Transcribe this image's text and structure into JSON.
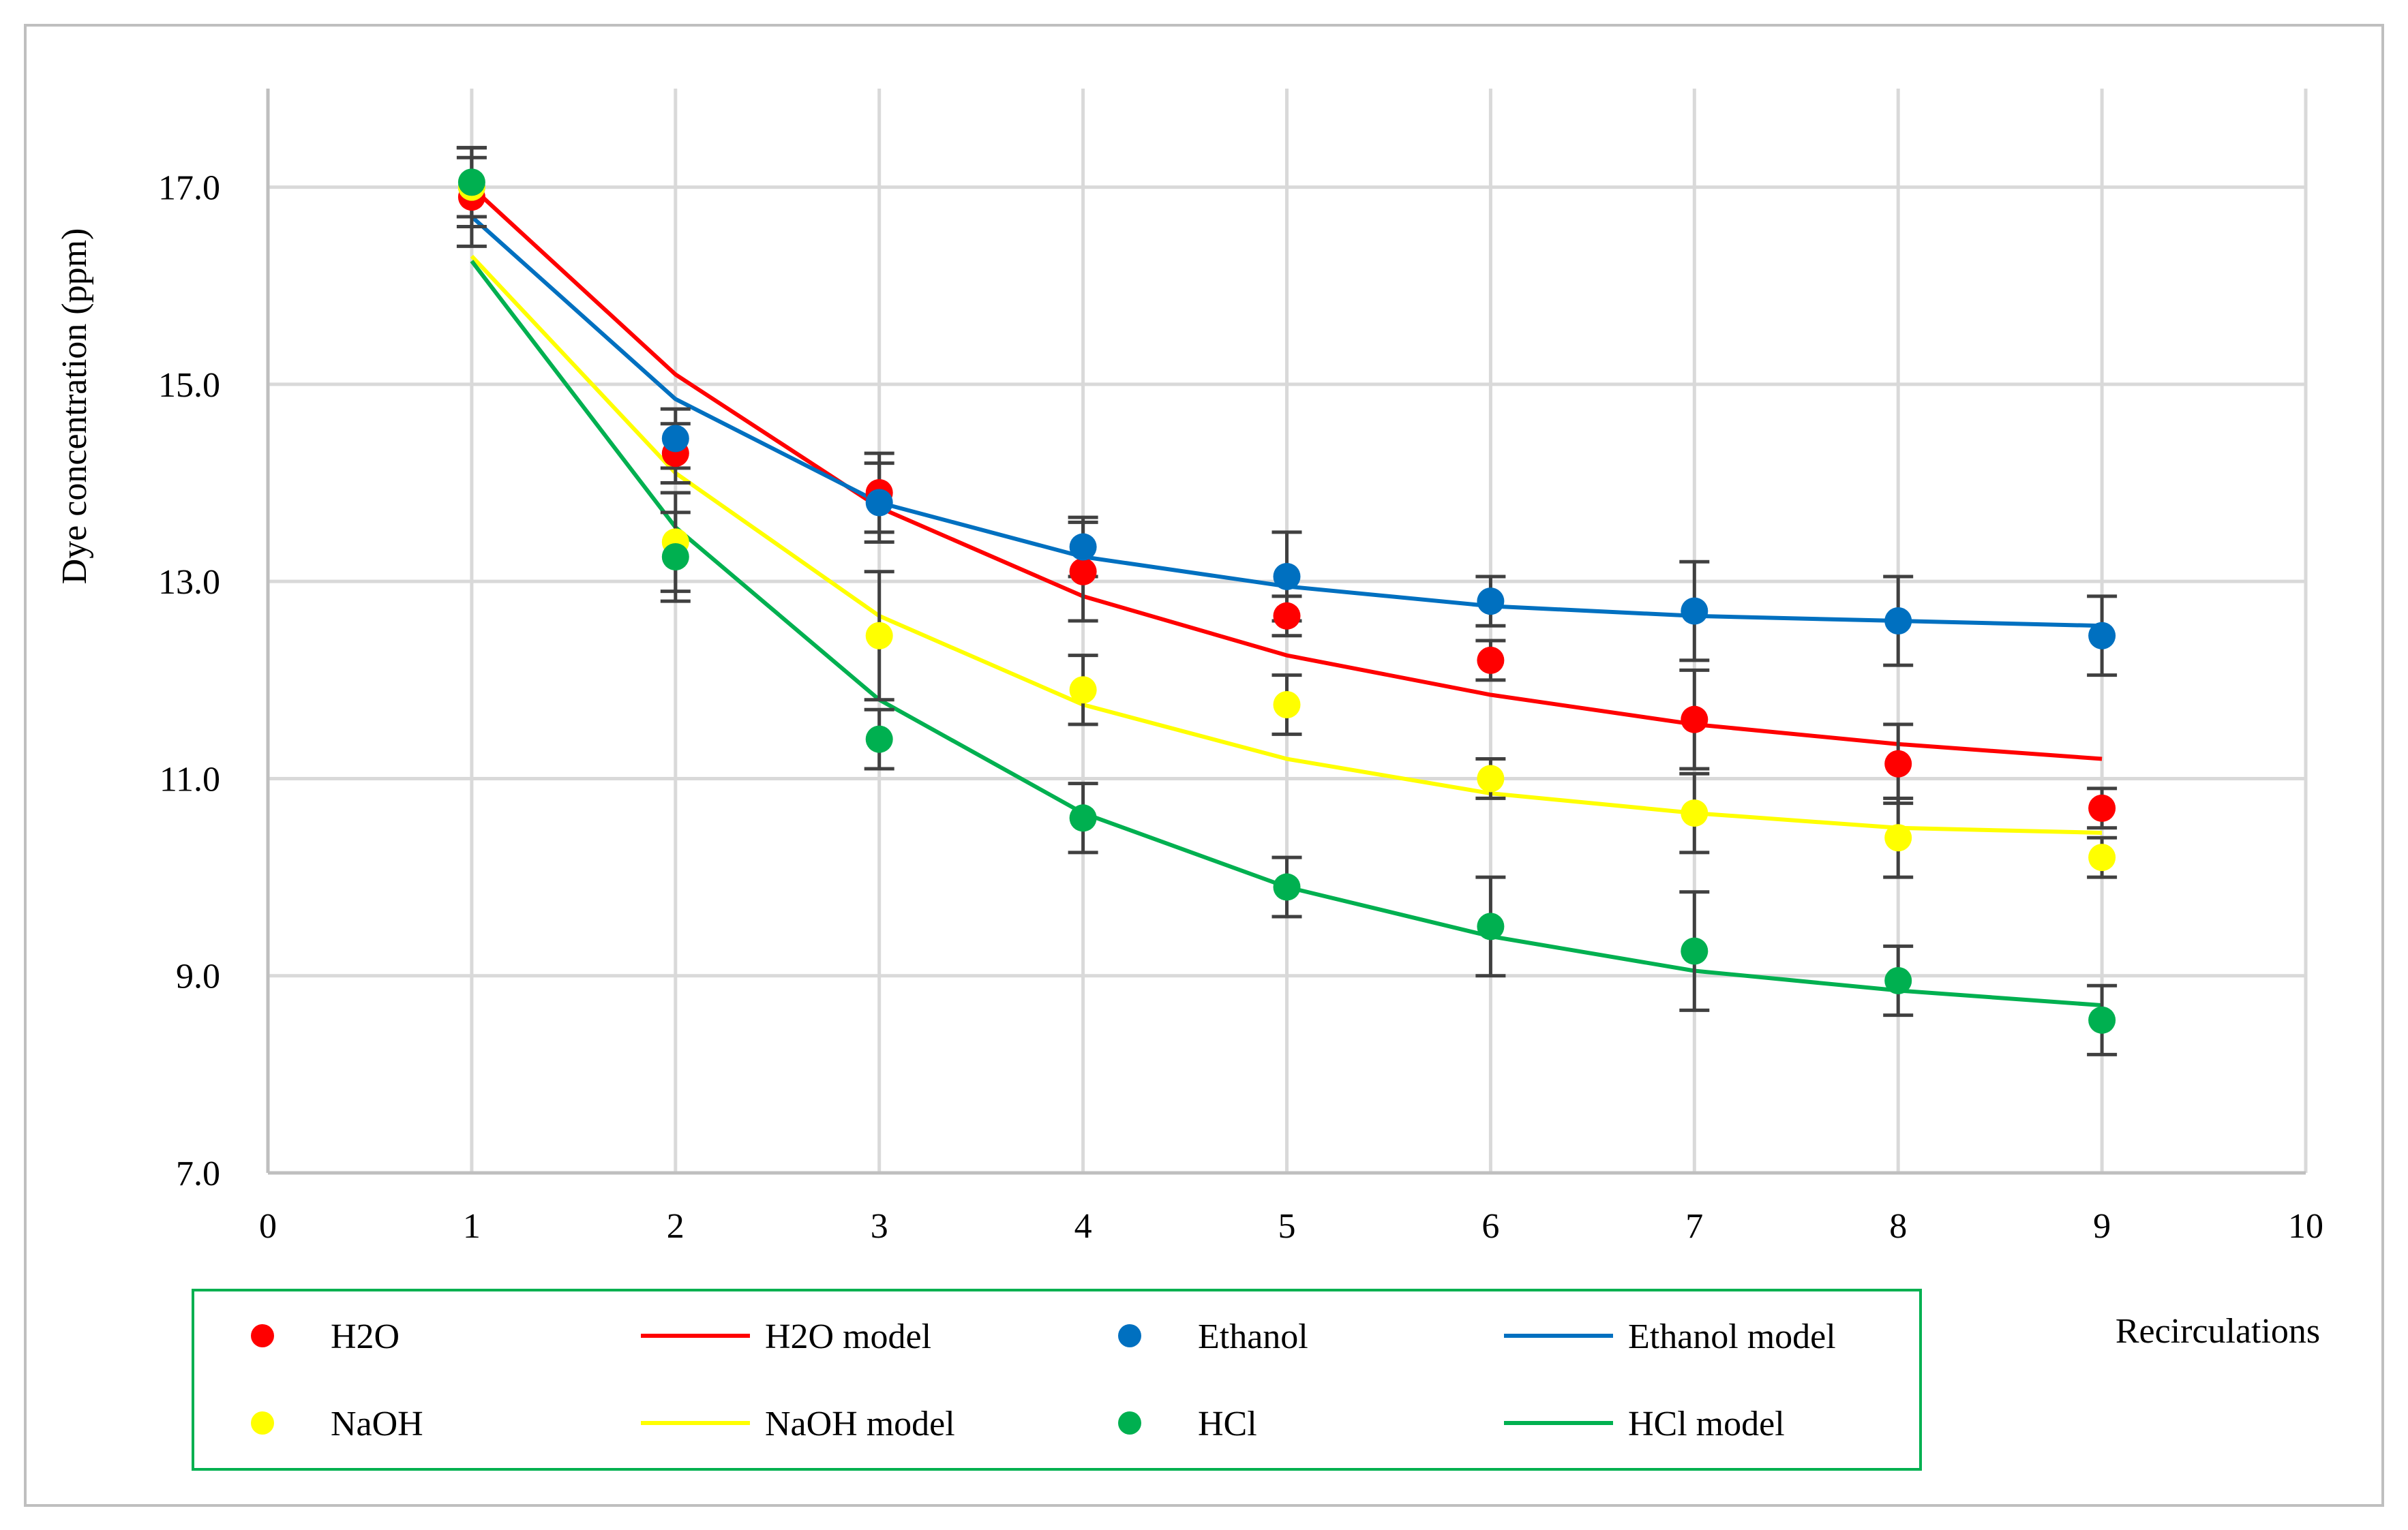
{
  "chart_data": {
    "type": "scatter",
    "xlabel": "Recirculations",
    "ylabel": "Dye concentration (ppm)",
    "xlim": [
      0,
      10
    ],
    "ylim": [
      7.0,
      18.0
    ],
    "x_ticks": [
      "0",
      "1",
      "2",
      "3",
      "4",
      "5",
      "6",
      "7",
      "8",
      "9",
      "10"
    ],
    "y_ticks": [
      "7.0",
      "9.0",
      "11.0",
      "13.0",
      "15.0",
      "17.0"
    ],
    "y_tick_values": [
      7,
      9,
      11,
      13,
      15,
      17
    ],
    "grid": true,
    "legend_position": "bottom",
    "x": [
      1,
      2,
      3,
      4,
      5,
      6,
      7,
      8,
      9
    ],
    "series": [
      {
        "name": "H2O",
        "kind": "points",
        "color": "#ff0000",
        "values": [
          16.9,
          14.3,
          13.9,
          13.1,
          12.65,
          12.2,
          11.6,
          11.15,
          10.7
        ],
        "error": [
          0.5,
          0.3,
          0.4,
          0.5,
          0.2,
          0.2,
          0.5,
          0.4,
          0.2
        ]
      },
      {
        "name": "H2O model",
        "kind": "line",
        "color": "#ff0000",
        "values": [
          17.0,
          15.1,
          13.75,
          12.85,
          12.25,
          11.85,
          11.55,
          11.35,
          11.2
        ]
      },
      {
        "name": "Ethanol",
        "kind": "points",
        "color": "#0070c0",
        "values": [
          17.0,
          14.45,
          13.8,
          13.35,
          13.05,
          12.8,
          12.7,
          12.6,
          12.45
        ],
        "error": [
          0.3,
          0.3,
          0.4,
          0.3,
          0.45,
          0.25,
          0.5,
          0.45,
          0.4
        ]
      },
      {
        "name": "Ethanol model",
        "kind": "line",
        "color": "#0070c0",
        "values": [
          16.7,
          14.85,
          13.8,
          13.25,
          12.95,
          12.75,
          12.65,
          12.6,
          12.55
        ]
      },
      {
        "name": "NaOH",
        "kind": "points",
        "color": "#ffff00",
        "values": [
          17.0,
          13.4,
          12.45,
          11.9,
          11.75,
          11.0,
          10.65,
          10.4,
          10.2
        ],
        "error": [
          0.4,
          0.5,
          0.65,
          0.35,
          0.3,
          0.2,
          0.4,
          0.4,
          0.2
        ]
      },
      {
        "name": "NaOH model",
        "kind": "line",
        "color": "#ffff00",
        "values": [
          16.3,
          14.1,
          12.65,
          11.75,
          11.2,
          10.85,
          10.65,
          10.5,
          10.45
        ]
      },
      {
        "name": "HCl",
        "kind": "points",
        "color": "#00b050",
        "values": [
          17.05,
          13.25,
          11.4,
          10.6,
          9.9,
          9.5,
          9.25,
          8.95,
          8.55
        ],
        "error": [
          0.35,
          0.45,
          0.3,
          0.35,
          0.3,
          0.5,
          0.6,
          0.35,
          0.35
        ]
      },
      {
        "name": "HCl model",
        "kind": "line",
        "color": "#00b050",
        "values": [
          16.25,
          13.55,
          11.8,
          10.65,
          9.9,
          9.4,
          9.05,
          8.85,
          8.7
        ]
      }
    ],
    "legend_labels": [
      "H2O",
      "H2O model",
      "Ethanol",
      "Ethanol model",
      "NaOH",
      "NaOH model",
      "HCl",
      "HCl model"
    ]
  },
  "style": {
    "grid_color": "#d9d9d9",
    "axis_color": "#bfbfbf",
    "errorbar_color": "#404040",
    "legend_border": "#00b050",
    "frame_border": "#bfbfbf"
  }
}
